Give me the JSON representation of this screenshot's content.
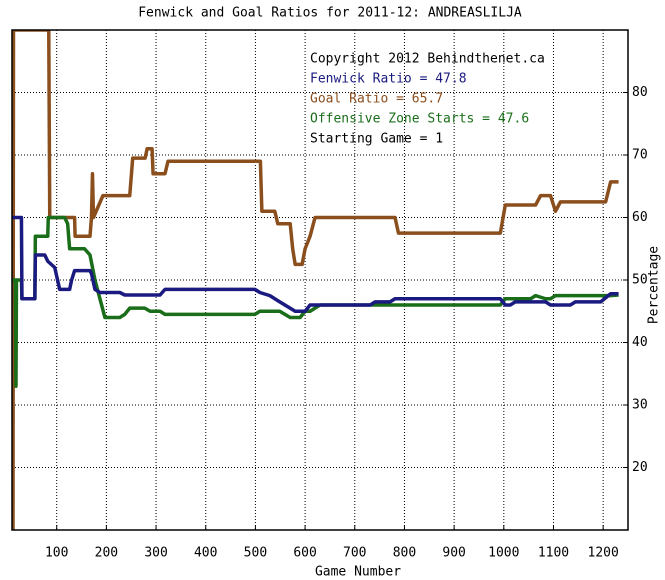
{
  "chart_data": {
    "type": "line",
    "title": "Fenwick and Goal Ratios for 2011-12: ANDREASLILJA",
    "xlabel": "Game Number",
    "ylabel": "Percentage",
    "annotations": [
      {
        "text": "Copyright 2012 Behindthenet.ca",
        "color": "#000000"
      },
      {
        "text": "Fenwick Ratio = 47.8",
        "color": "#1a1a80"
      },
      {
        "text": "Goal Ratio = 65.7",
        "color": "#8b4f1e"
      },
      {
        "text": "Offensive Zone Starts = 47.6",
        "color": "#1a6e1a"
      },
      {
        "text": "Starting Game = 1",
        "color": "#000000"
      }
    ],
    "xlim": [
      10,
      1250
    ],
    "ylim": [
      10,
      90
    ],
    "xticks": [
      100,
      200,
      300,
      400,
      500,
      600,
      700,
      800,
      900,
      1000,
      1100,
      1200
    ],
    "yticks": [
      20,
      30,
      40,
      50,
      60,
      70,
      80
    ],
    "grid": true,
    "series": [
      {
        "color": "#8b4f1e",
        "x": [
          12,
          13,
          84,
          86,
          136,
          137,
          167,
          170,
          172,
          174,
          193,
          247,
          253,
          278,
          282,
          292,
          294,
          318,
          324,
          510,
          513,
          539,
          545,
          570,
          575,
          580,
          594,
          600,
          610,
          620,
          781,
          788,
          993,
          1003,
          1064,
          1074,
          1094,
          1104,
          1114,
          1205,
          1215,
          1231
        ],
        "values": [
          10,
          90,
          90,
          60,
          60,
          57,
          57,
          60,
          67,
          60,
          63.5,
          63.5,
          69.5,
          69.5,
          71,
          71,
          67,
          67,
          69,
          69,
          61,
          61,
          59,
          59,
          55,
          52.5,
          52.5,
          55,
          57,
          60,
          60,
          57.5,
          57.5,
          62,
          62,
          63.5,
          63.5,
          61,
          62.5,
          62.5,
          65.7,
          65.7
        ]
      },
      {
        "color": "#1a6e1a",
        "x": [
          10,
          17,
          18,
          19,
          29,
          30,
          56,
          57,
          82,
          83,
          116,
          122,
          126,
          156,
          167,
          177,
          187,
          197,
          227,
          237,
          247,
          277,
          288,
          308,
          318,
          499,
          509,
          549,
          570,
          590,
          600,
          610,
          630,
          852,
          872,
          993,
          1003,
          1054,
          1064,
          1084,
          1094,
          1104,
          1215,
          1231
        ],
        "values": [
          50,
          50,
          33,
          50,
          50,
          47,
          47,
          57,
          57,
          60,
          60,
          59,
          55,
          55,
          54,
          50,
          47,
          44,
          44,
          44.5,
          45.5,
          45.5,
          45,
          45,
          44.5,
          44.5,
          45,
          45,
          44,
          44,
          45,
          45,
          46,
          46,
          46,
          46,
          47,
          47,
          47.5,
          47,
          47,
          47.5,
          47.5,
          47.6
        ]
      },
      {
        "color": "#1a1a80",
        "x": [
          10,
          29,
          30,
          56,
          57,
          76,
          82,
          96,
          106,
          126,
          130,
          136,
          167,
          170,
          177,
          187,
          197,
          227,
          237,
          308,
          318,
          499,
          509,
          529,
          549,
          580,
          600,
          610,
          731,
          741,
          771,
          781,
          993,
          1003,
          1013,
          1023,
          1084,
          1094,
          1134,
          1144,
          1195,
          1215,
          1231
        ],
        "values": [
          60,
          60,
          47,
          47,
          54,
          54,
          53,
          52,
          48.5,
          48.5,
          50,
          51.5,
          51.5,
          51,
          48.5,
          48,
          48,
          48,
          47.6,
          47.6,
          48.5,
          48.5,
          48,
          47.5,
          46.5,
          45,
          45,
          46,
          46,
          46.5,
          46.5,
          47,
          47,
          46,
          46,
          46.5,
          46.5,
          46,
          46,
          46.5,
          46.5,
          47.8,
          47.8
        ]
      }
    ]
  }
}
